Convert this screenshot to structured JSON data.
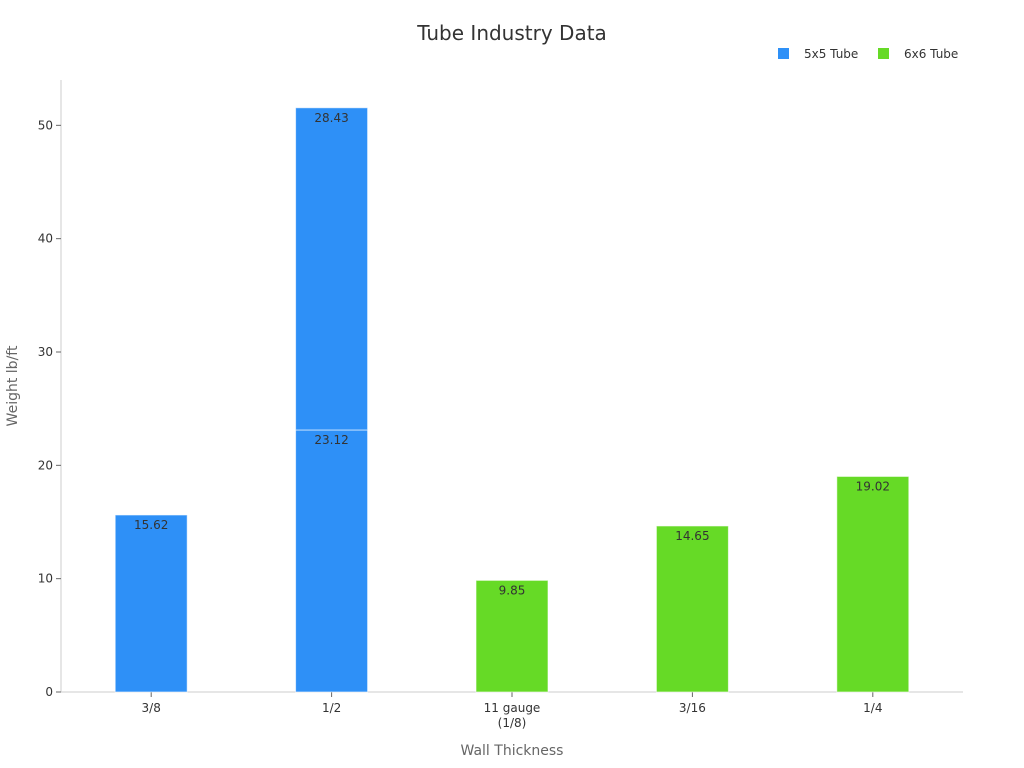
{
  "chart_data": {
    "type": "bar",
    "stacked": true,
    "title": "Tube Industry Data",
    "xlabel": "Wall Thickness",
    "ylabel": "Weight lb/ft",
    "categories": [
      "3/8",
      "1/2",
      "11 gauge (1/8)",
      "3/16",
      "1/4"
    ],
    "category_lines": [
      [
        "3/8"
      ],
      [
        "1/2"
      ],
      [
        "11 gauge",
        "(1/8)"
      ],
      [
        "3/16"
      ],
      [
        "1/4"
      ]
    ],
    "series": [
      {
        "name": "5x5 Tube",
        "color": "#2e90f7",
        "values": [
          [
            15.62
          ],
          [
            23.12,
            28.43
          ],
          [],
          [],
          []
        ]
      },
      {
        "name": "6x6 Tube",
        "color": "#66da26",
        "values": [
          [],
          [],
          [
            9.85
          ],
          [
            14.65
          ],
          [
            19.02
          ]
        ]
      }
    ],
    "ylim": [
      0,
      54
    ],
    "yticks": [
      0,
      10,
      20,
      30,
      40,
      50
    ],
    "grid": false,
    "legend_position": "top-right"
  }
}
